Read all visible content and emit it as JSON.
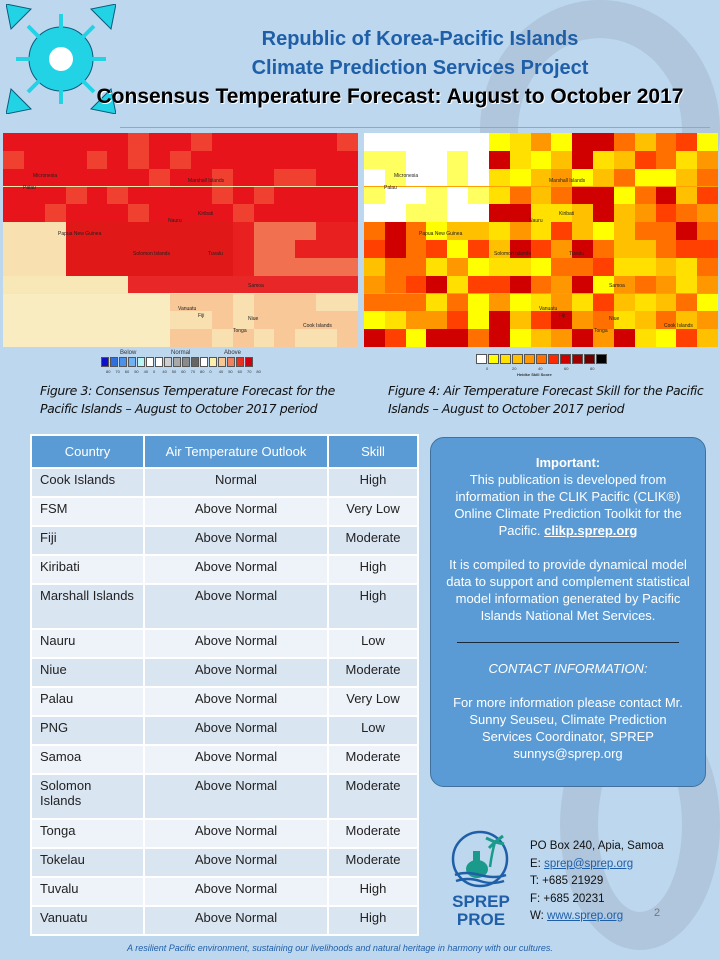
{
  "header": {
    "line1": "Republic of Korea-Pacific Islands",
    "line2": "Climate Prediction Services Project",
    "line3": "Consensus Temperature Forecast: August to October 2017"
  },
  "map_labels": [
    "Micronesia",
    "Palau",
    "Marshall Islands",
    "Nauru",
    "Kiribati",
    "Papua New Guinea",
    "Solomon Islands",
    "Tuvalu",
    "Vanuatu",
    "Samoa",
    "Fiji",
    "Tonga",
    "Niue",
    "Cook Islands"
  ],
  "legend1": {
    "groups": [
      "Below",
      "Normal",
      "Above"
    ],
    "ticks": [
      "80",
      "70",
      "60",
      "50",
      "40",
      "0",
      "40",
      "50",
      "60",
      "70",
      "80",
      "0",
      "40",
      "50",
      "60",
      "70",
      "80"
    ],
    "colors": [
      "#1010c8",
      "#2f6fe0",
      "#4a90ee",
      "#6fb2f5",
      "#b8f4f8",
      "#fff",
      "#fff",
      "#cfcfcf",
      "#a8a8a8",
      "#8a8a8a",
      "#666",
      "#fff",
      "#fbf0b0",
      "#f8c890",
      "#f08060",
      "#e83020",
      "#d00010"
    ]
  },
  "legend2": {
    "ticks": [
      "0",
      "20",
      "40",
      "60",
      "80"
    ],
    "title": "Heidke Skill Score",
    "colors": [
      "#fff",
      "#ffff00",
      "#ffe000",
      "#ffc000",
      "#ff9800",
      "#ff7000",
      "#ff2800",
      "#d00000",
      "#a00000",
      "#700000",
      "#000"
    ]
  },
  "captions": {
    "fig3": "Figure 3: Consensus Temperature Forecast for the Pacific Islands – August to October 2017 period",
    "fig4": "Figure 4: Air Temperature Forecast Skill for the Pacific Islands – August to October 2017 period"
  },
  "table": {
    "headers": [
      "Country",
      "Air Temperature Outlook",
      "Skill"
    ],
    "rows": [
      [
        "Cook Islands",
        "Normal",
        "High"
      ],
      [
        "FSM",
        "Above Normal",
        "Very Low"
      ],
      [
        "Fiji",
        "Above Normal",
        "Moderate"
      ],
      [
        "Kiribati",
        "Above Normal",
        "High"
      ],
      [
        "Marshall Islands",
        "Above Normal",
        "High"
      ],
      [
        "Nauru",
        "Above Normal",
        "Low"
      ],
      [
        "Niue",
        "Above Normal",
        "Moderate"
      ],
      [
        "Palau",
        "Above Normal",
        "Very Low"
      ],
      [
        "PNG",
        "Above Normal",
        "Low"
      ],
      [
        "Samoa",
        "Above Normal",
        "Moderate"
      ],
      [
        "Solomon Islands",
        "Above Normal",
        "Moderate"
      ],
      [
        "Tonga",
        "Above Normal",
        "Moderate"
      ],
      [
        "Tokelau",
        "Above Normal",
        "Moderate"
      ],
      [
        "Tuvalu",
        "Above Normal",
        "High"
      ],
      [
        "Vanuatu",
        "Above Normal",
        "High"
      ]
    ]
  },
  "important": {
    "title": "Important:",
    "p1": "This publication is developed from information in the CLIK Pacific (CLIK®) Online Climate Prediction Toolkit for the Pacific.",
    "link": "clikp.sprep.org",
    "p2": "It is compiled to provide dynamical model data to support and complement statistical model information generated by Pacific Islands National Met Services.",
    "contact_title": "CONTACT INFORMATION:",
    "p3": "For more information please contact Mr. Sunny Seuseu, Climate Prediction Services Coordinator, SPREP sunnys@sprep.org"
  },
  "contact": {
    "logo_text1": "SPREP",
    "logo_text2": "PROE",
    "address": "PO Box 240, Apia, Samoa",
    "email_label": "E: ",
    "email": "sprep@sprep.org",
    "tel": "T: +685 21929",
    "fax": "F: +685 20231",
    "web_label": "W: ",
    "web": "www.sprep.org"
  },
  "page_number": "2",
  "footer": "A resilient Pacific environment, sustaining our livelihoods and natural heritage in harmony with our cultures."
}
